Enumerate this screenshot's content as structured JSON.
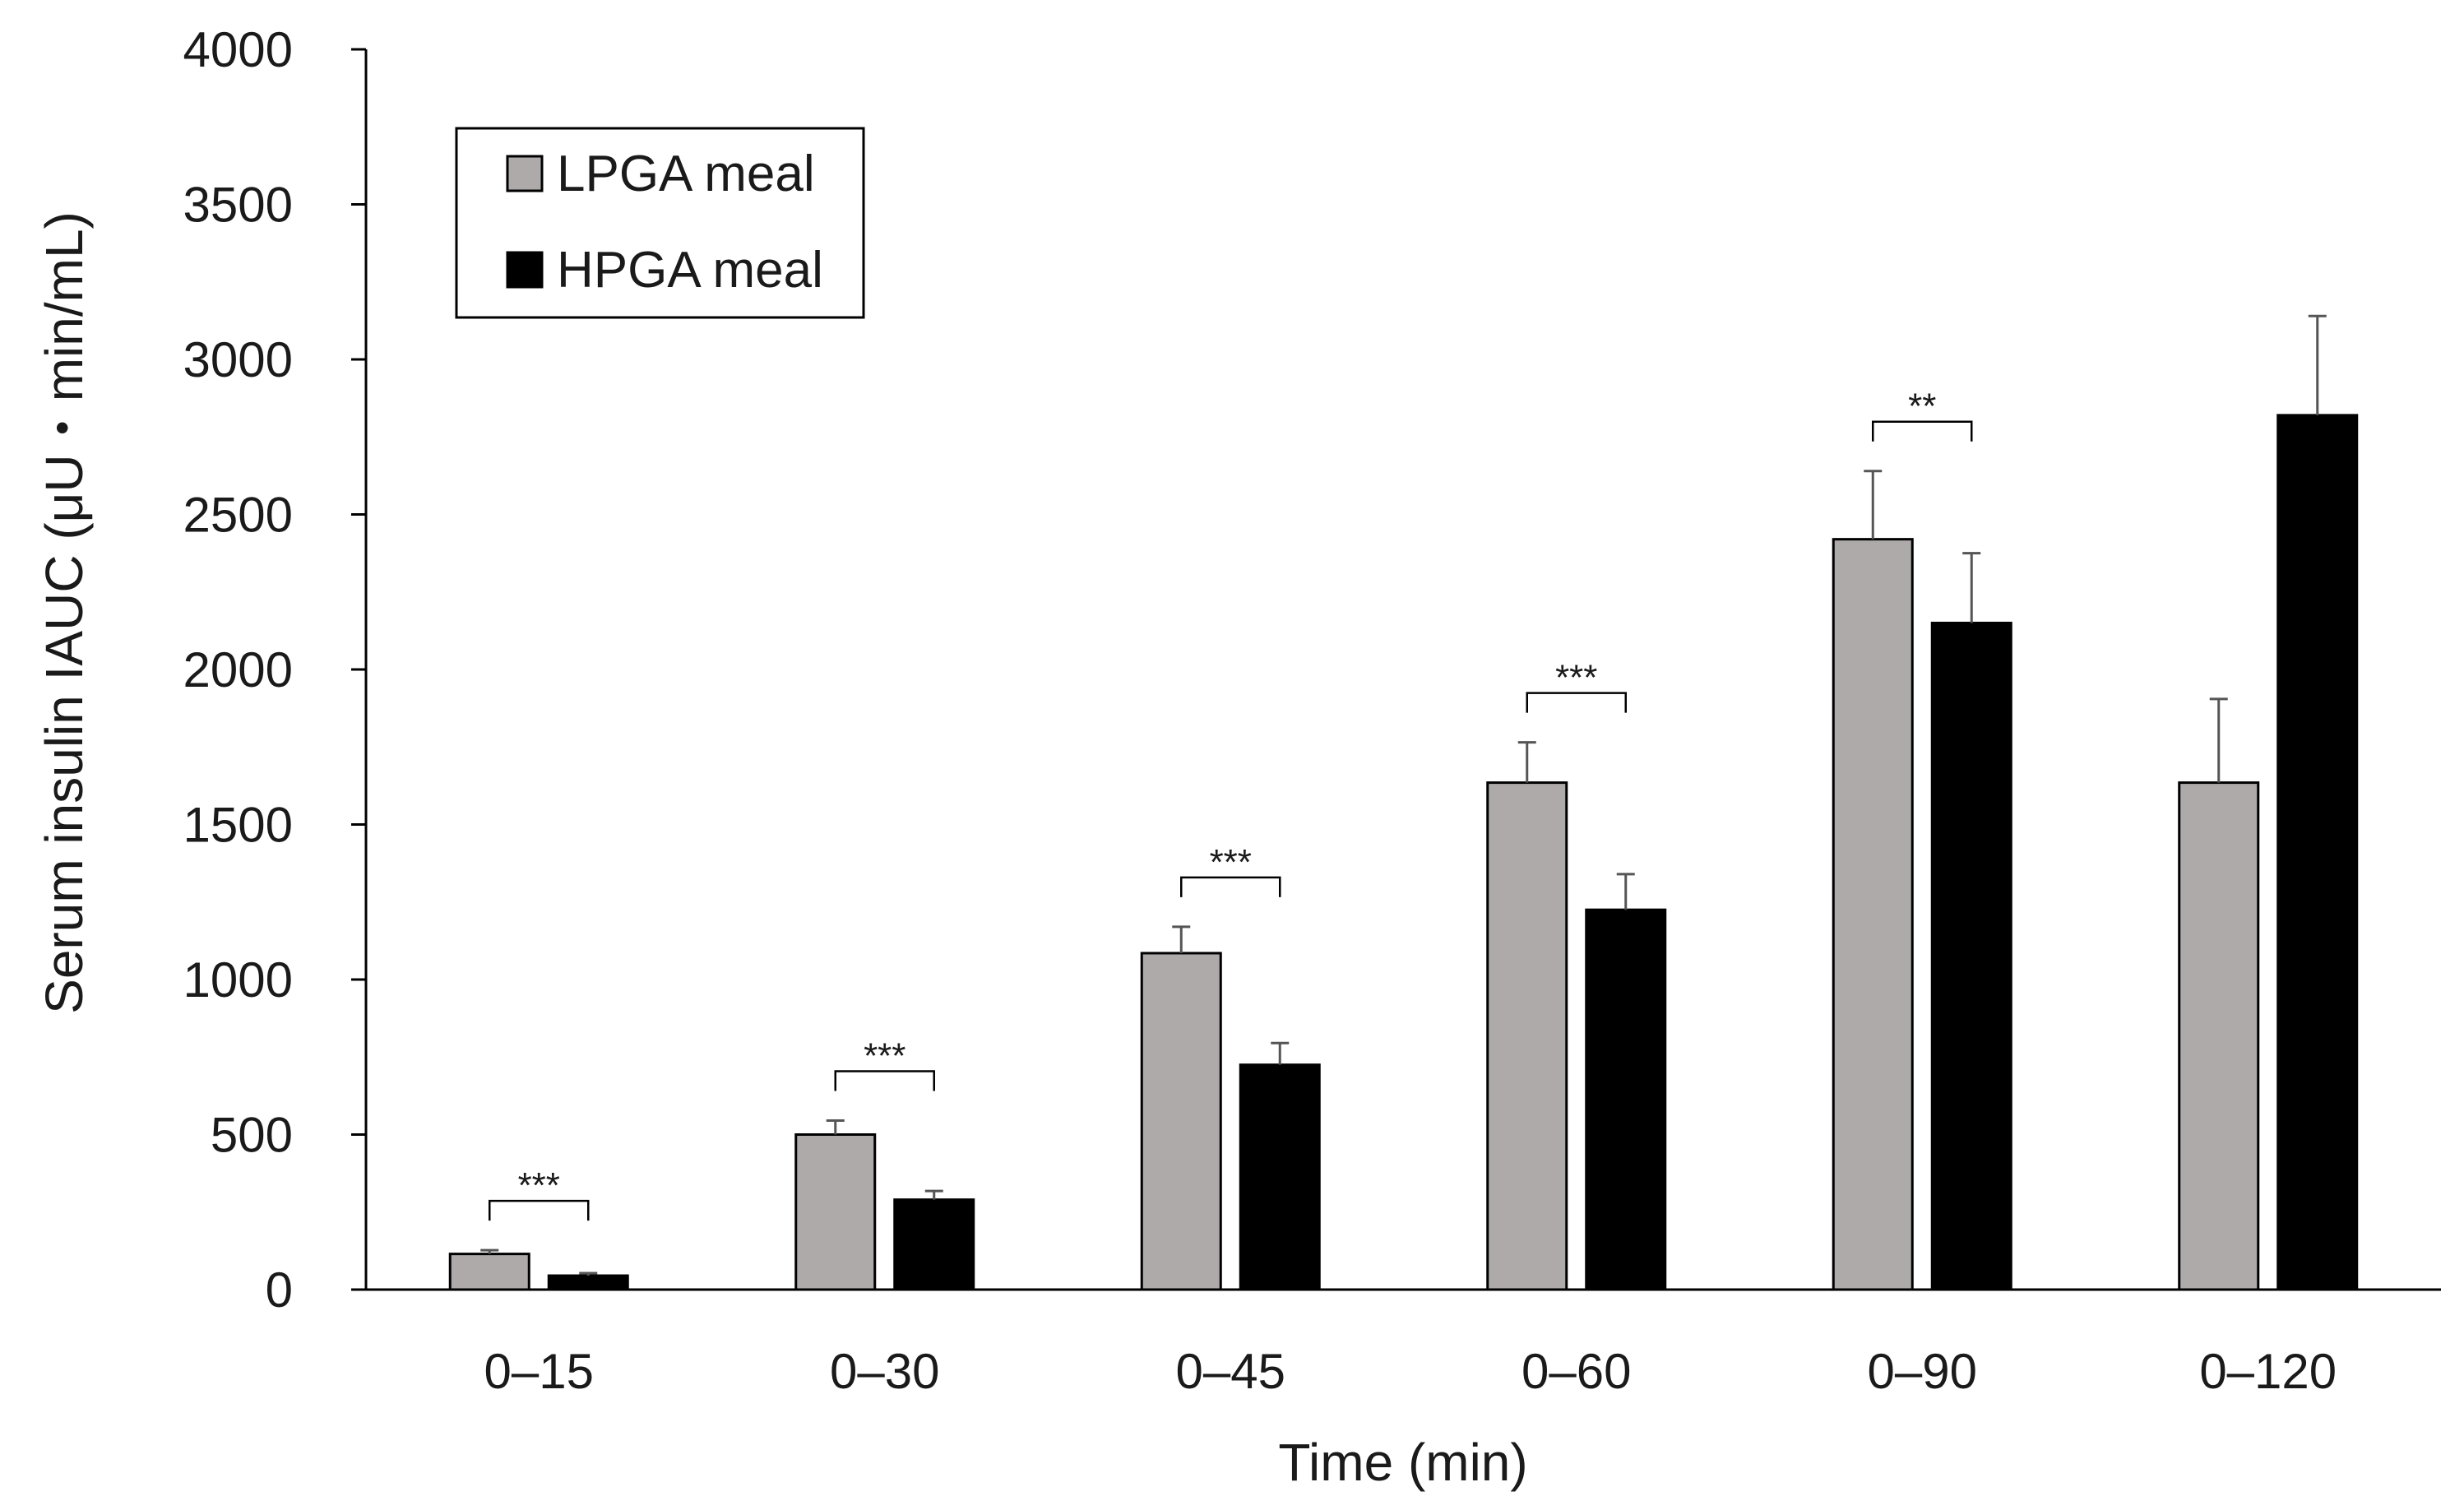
{
  "chart_data": {
    "type": "bar",
    "title": "",
    "xlabel": "Time (min)",
    "ylabel": "Serum insulin IAUC (μU・min/mL)",
    "ylim": [
      0,
      4000
    ],
    "yticks": [
      0,
      500,
      1000,
      1500,
      2000,
      2500,
      3000,
      3500,
      4000
    ],
    "categories": [
      "0–15",
      "0–30",
      "0–45",
      "0–60",
      "0–90",
      "0–120"
    ],
    "series": [
      {
        "name": "LPGA meal",
        "color": "#aeaaaa",
        "values": [
          115,
          500,
          1085,
          1635,
          2420,
          1635
        ],
        "errors": [
          12,
          45,
          85,
          130,
          220,
          270
        ]
      },
      {
        "name": "HPGA meal",
        "color": "#000000",
        "values": [
          45,
          290,
          725,
          1225,
          2150,
          2820
        ],
        "errors": [
          8,
          28,
          70,
          115,
          225,
          320
        ]
      }
    ],
    "significance": [
      {
        "category": "0–15",
        "label": "***"
      },
      {
        "category": "0–30",
        "label": "***"
      },
      {
        "category": "0–45",
        "label": "***"
      },
      {
        "category": "0–60",
        "label": "***"
      },
      {
        "category": "0–90",
        "label": "**"
      }
    ],
    "legend": {
      "position": "top-left",
      "entries": [
        "LPGA meal",
        "HPGA meal"
      ]
    },
    "grid": false
  }
}
